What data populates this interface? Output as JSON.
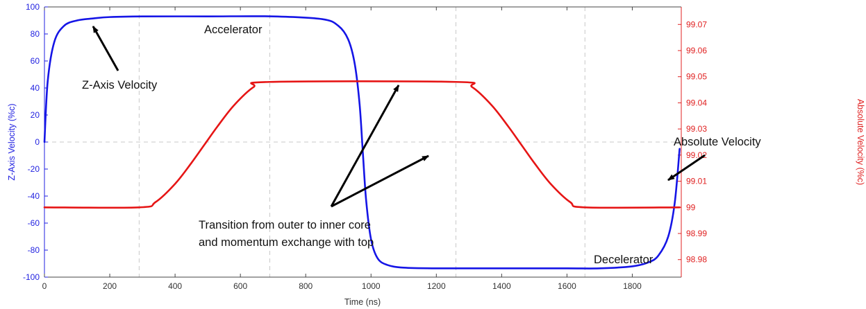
{
  "chart_data": {
    "type": "line",
    "xlabel": "Time (ns)",
    "ylabel_left": "Z-Axis Velocity (%c)",
    "ylabel_right": "Absolute Velocity (%c)",
    "xlim": [
      0,
      1950
    ],
    "ylim_left": [
      -100,
      100
    ],
    "ylim_right": [
      98.9733,
      99.0767
    ],
    "x_ticks": [
      "0",
      "200",
      "400",
      "600",
      "800",
      "1000",
      "1200",
      "1400",
      "1600",
      "1800"
    ],
    "y_left_ticks": [
      "100",
      "80",
      "60",
      "40",
      "20",
      "0",
      "-20",
      "-40",
      "-60",
      "-80",
      "-100"
    ],
    "y_right_ticks": [
      "99.07",
      "99.06",
      "99.05",
      "99.04",
      "99.03",
      "99.02",
      "99.01",
      "99",
      "98.99",
      "98.98"
    ],
    "dashed_vertical_lines_at": [
      290,
      690,
      1260,
      1655
    ],
    "dashed_horizontal_line_left": 0,
    "series": [
      {
        "name": "Z-Axis Velocity",
        "axis": "left",
        "color": "#1515e6",
        "x": [
          0,
          10,
          30,
          60,
          100,
          150,
          200,
          300,
          500,
          700,
          850,
          900,
          930,
          950,
          965,
          975,
          985,
          1000,
          1020,
          1050,
          1100,
          1200,
          1400,
          1600,
          1700,
          1800,
          1850,
          1880,
          1910,
          1930,
          1945
        ],
        "y": [
          0,
          45,
          74,
          86,
          90,
          91.5,
          92.5,
          93,
          93,
          93,
          91,
          86,
          76,
          58,
          28,
          -8,
          -43,
          -72,
          -86,
          -91,
          -93,
          -93.5,
          -93.5,
          -93.5,
          -93.5,
          -92,
          -89,
          -84,
          -70,
          -45,
          -5
        ]
      },
      {
        "name": "Absolute Velocity",
        "axis": "right",
        "color": "#e61515",
        "x": [
          0,
          290,
          340,
          400,
          450,
          490,
          530,
          580,
          640,
          690,
          1260,
          1310,
          1370,
          1420,
          1460,
          1500,
          1550,
          1610,
          1655,
          1945
        ],
        "y": [
          99.0,
          99.0,
          99.002,
          99.009,
          99.017,
          99.024,
          99.031,
          99.039,
          99.046,
          99.048,
          99.048,
          99.046,
          99.039,
          99.031,
          99.024,
          99.017,
          99.009,
          99.002,
          99.0,
          99.0
        ]
      }
    ]
  },
  "annotations": {
    "accelerator": "Accelerator",
    "z_axis_velocity": "Z-Axis Velocity",
    "transition_line1": "Transition from outer to inner core",
    "transition_line2": "and momentum exchange with top",
    "absolute_velocity": "Absolute Velocity",
    "decelerator": "Decelerator"
  }
}
